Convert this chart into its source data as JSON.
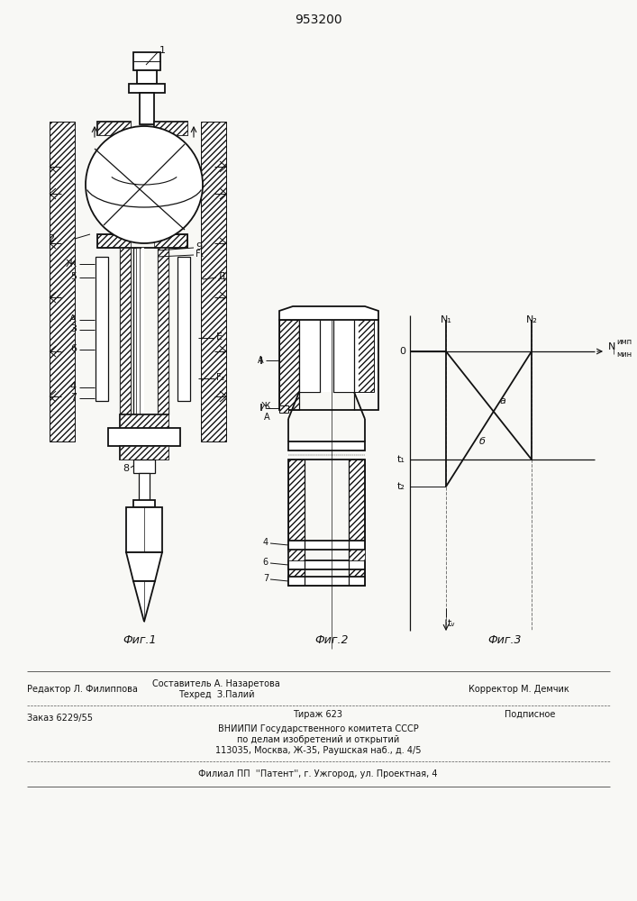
{
  "title": "953200",
  "bg_color": "#f8f8f5",
  "fig1_label": "Фиг.1",
  "fig2_label": "Фиг.2",
  "fig3_label": "Фиг.3"
}
